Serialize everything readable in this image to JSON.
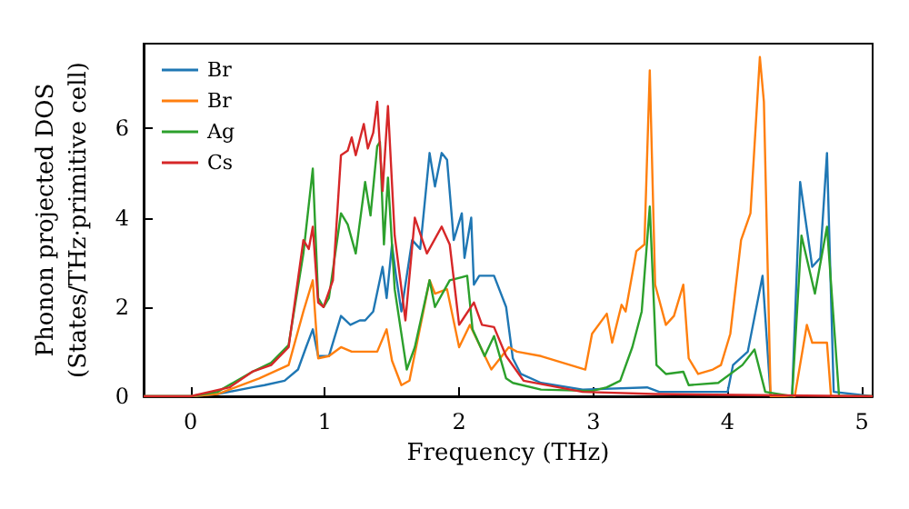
{
  "chart_data": {
    "type": "line",
    "xlabel": "Frequency (THz)",
    "ylabel": "Phonon projected DOS\n(States/THz·primitive cell)",
    "xlim": [
      -0.35,
      5.08
    ],
    "xticks": [
      0,
      1,
      2,
      3,
      4,
      5
    ],
    "ylim": [
      0,
      7.9
    ],
    "yticks": [
      0,
      2,
      4,
      6
    ],
    "grid": false,
    "legend": "top left",
    "marker": "none",
    "line_style": "solid",
    "series": [
      {
        "name": "Br",
        "color": "#1f77b4",
        "x": [
          -0.35,
          0.0,
          0.2,
          0.46,
          0.55,
          0.7,
          0.8,
          0.86,
          0.91,
          0.95,
          1.03,
          1.12,
          1.19,
          1.26,
          1.3,
          1.36,
          1.43,
          1.46,
          1.5,
          1.53,
          1.57,
          1.65,
          1.71,
          1.78,
          1.82,
          1.87,
          1.91,
          1.96,
          2.02,
          2.04,
          2.09,
          2.11,
          2.15,
          2.26,
          2.35,
          2.4,
          2.46,
          2.61,
          2.92,
          3.4,
          3.49,
          4.0,
          4.04,
          4.15,
          4.26,
          4.32,
          4.48,
          4.54,
          4.63,
          4.69,
          4.74,
          4.79,
          5.08
        ],
        "values": [
          0,
          0,
          0.05,
          0.2,
          0.25,
          0.35,
          0.6,
          1.1,
          1.5,
          0.9,
          0.9,
          1.8,
          1.6,
          1.7,
          1.7,
          1.9,
          2.9,
          2.2,
          3.4,
          2.7,
          1.9,
          3.5,
          3.3,
          5.45,
          4.7,
          5.45,
          5.3,
          3.5,
          4.1,
          3.1,
          4.0,
          2.5,
          2.7,
          2.7,
          2.0,
          0.85,
          0.5,
          0.3,
          0.15,
          0.2,
          0.1,
          0.1,
          0.7,
          1.0,
          2.7,
          0,
          0,
          4.8,
          2.9,
          3.1,
          5.45,
          0.1,
          0
        ]
      },
      {
        "name": "Br",
        "color": "#ff7f0e",
        "x": [
          -0.35,
          0.0,
          0.2,
          0.51,
          0.73,
          0.84,
          0.91,
          0.95,
          1.03,
          1.12,
          1.2,
          1.29,
          1.39,
          1.46,
          1.5,
          1.57,
          1.63,
          1.78,
          1.82,
          1.91,
          2.0,
          2.08,
          2.24,
          2.37,
          2.43,
          2.61,
          2.94,
          2.99,
          3.1,
          3.14,
          3.21,
          3.24,
          3.32,
          3.38,
          3.42,
          3.46,
          3.54,
          3.6,
          3.67,
          3.71,
          3.78,
          3.89,
          3.95,
          4.02,
          4.1,
          4.17,
          4.24,
          4.27,
          4.32,
          4.5,
          4.59,
          4.63,
          4.74,
          4.77,
          5.08
        ],
        "values": [
          0,
          0,
          0.05,
          0.4,
          0.7,
          1.9,
          2.6,
          0.85,
          0.9,
          1.1,
          1.0,
          1.0,
          1.0,
          1.5,
          0.8,
          0.25,
          0.35,
          2.6,
          2.3,
          2.4,
          1.1,
          1.6,
          0.6,
          1.1,
          1.0,
          0.9,
          0.6,
          1.4,
          1.85,
          1.2,
          2.05,
          1.9,
          3.25,
          3.4,
          7.3,
          2.5,
          1.6,
          1.8,
          2.5,
          0.85,
          0.5,
          0.6,
          0.7,
          1.4,
          3.5,
          4.1,
          7.6,
          6.6,
          0,
          0,
          1.6,
          1.2,
          1.2,
          0,
          0
        ]
      },
      {
        "name": "Ag",
        "color": "#2ca02c",
        "x": [
          -0.35,
          0.0,
          0.2,
          0.46,
          0.6,
          0.73,
          0.84,
          0.91,
          0.95,
          0.99,
          1.03,
          1.12,
          1.17,
          1.23,
          1.3,
          1.34,
          1.39,
          1.41,
          1.44,
          1.47,
          1.52,
          1.61,
          1.67,
          1.78,
          1.82,
          1.93,
          2.06,
          2.1,
          2.19,
          2.26,
          2.35,
          2.4,
          2.61,
          2.99,
          3.1,
          3.2,
          3.29,
          3.36,
          3.42,
          3.47,
          3.54,
          3.67,
          3.71,
          3.93,
          4.11,
          4.2,
          4.28,
          4.48,
          4.55,
          4.65,
          4.74,
          4.83,
          5.08
        ],
        "values": [
          0,
          0,
          0.1,
          0.55,
          0.75,
          1.15,
          3.2,
          5.1,
          2.2,
          2.0,
          2.2,
          4.1,
          3.85,
          3.2,
          4.8,
          4.05,
          5.6,
          5.7,
          3.4,
          4.9,
          2.4,
          0.6,
          1.1,
          2.6,
          2.0,
          2.6,
          2.7,
          1.5,
          0.9,
          1.35,
          0.4,
          0.3,
          0.15,
          0.12,
          0.2,
          0.35,
          1.1,
          1.9,
          4.25,
          0.7,
          0.5,
          0.55,
          0.25,
          0.3,
          0.7,
          1.05,
          0.1,
          0,
          3.6,
          2.3,
          3.8,
          0,
          0
        ]
      },
      {
        "name": "Cs",
        "color": "#d62728",
        "x": [
          -0.35,
          0.0,
          0.29,
          0.46,
          0.6,
          0.73,
          0.84,
          0.88,
          0.91,
          0.95,
          0.99,
          1.06,
          1.12,
          1.17,
          1.2,
          1.23,
          1.29,
          1.32,
          1.36,
          1.39,
          1.43,
          1.47,
          1.52,
          1.6,
          1.67,
          1.76,
          1.87,
          1.93,
          2.0,
          2.11,
          2.17,
          2.26,
          2.35,
          2.48,
          2.92,
          3.45,
          5.08
        ],
        "values": [
          0,
          0,
          0.2,
          0.55,
          0.7,
          1.1,
          3.5,
          3.3,
          3.8,
          2.1,
          2.0,
          2.6,
          5.4,
          5.5,
          5.8,
          5.4,
          6.1,
          5.55,
          5.9,
          6.6,
          4.6,
          6.5,
          3.6,
          1.7,
          4.0,
          3.2,
          3.8,
          3.4,
          1.6,
          2.1,
          1.6,
          1.55,
          0.9,
          0.35,
          0.1,
          0.05,
          0
        ]
      }
    ]
  }
}
